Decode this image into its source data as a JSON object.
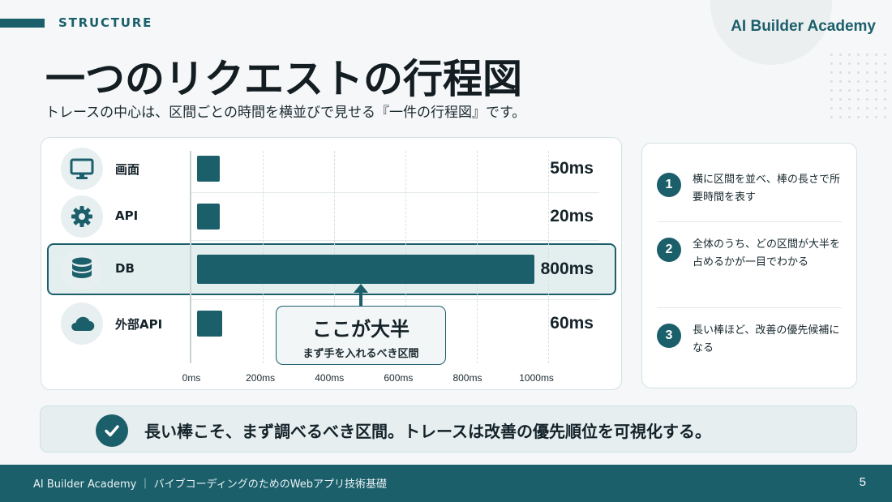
{
  "header": {
    "section_label": "STRUCTURE",
    "brand": "AI Builder Academy",
    "title": "一つのリクエストの行程図",
    "subtitle": "トレースの中心は、区間ごとの時間を横並びで見せる『一件の行程図』です。"
  },
  "chart_data": {
    "type": "bar",
    "orientation": "horizontal",
    "categories": [
      "画面",
      "API",
      "DB",
      "外部API"
    ],
    "values": [
      50,
      20,
      800,
      60
    ],
    "value_labels": [
      "50ms",
      "20ms",
      "800ms",
      "60ms"
    ],
    "icons": [
      "monitor-icon",
      "gear-icon",
      "database-icon",
      "cloud-icon"
    ],
    "highlight_index": 2,
    "xlim": [
      0,
      1000
    ],
    "x_ticks": [
      0,
      200,
      400,
      600,
      800,
      1000
    ],
    "x_tick_labels": [
      "0ms",
      "200ms",
      "400ms",
      "600ms",
      "800ms",
      "1000ms"
    ],
    "grid": true,
    "bar_color": "#1b5f6b"
  },
  "callout": {
    "title": "ここが大半",
    "subtitle": "まず手を入れるべき区間"
  },
  "points": [
    {
      "num": "1",
      "text": "横に区間を並べ、棒の長さで所要時間を表す"
    },
    {
      "num": "2",
      "text": "全体のうち、どの区間が大半を占めるかが一目でわかる"
    },
    {
      "num": "3",
      "text": "長い棒ほど、改善の優先候補になる"
    }
  ],
  "summary": {
    "icon": "check-icon",
    "text": "長い棒こそ、まず調べるべき区間。トレースは改善の優先順位を可視化する。"
  },
  "footer": {
    "text": "AI Builder Academy ｜ バイブコーディングのためのWebアプリ技術基礎",
    "page": "5"
  },
  "colors": {
    "accent": "#1b5f6b",
    "highlight_bg": "#e3eeef",
    "background": "#f5f7f8"
  }
}
